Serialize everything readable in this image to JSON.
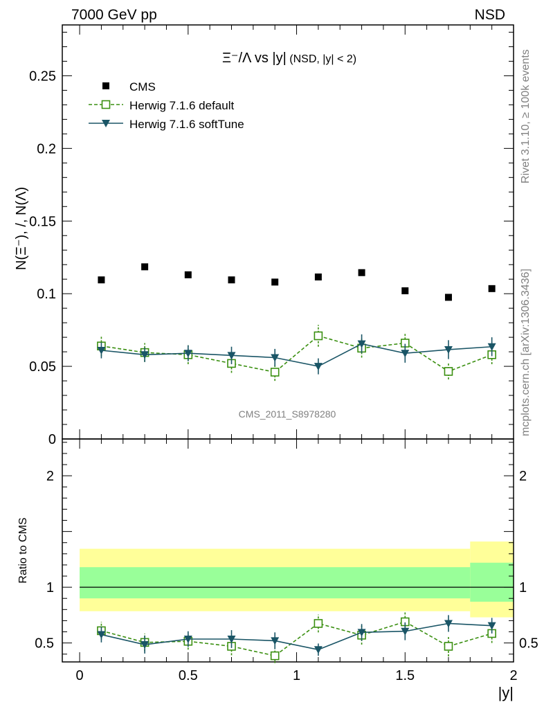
{
  "header": {
    "left": "7000 GeV pp",
    "right": "NSD"
  },
  "side_labels": {
    "rivet": "Rivet 3.1.10, ≥ 100k events",
    "mcplots": "mcplots.cern.ch [arXiv:1306.3436]"
  },
  "watermark": "CMS_2011_S8978280",
  "colors": {
    "data": "#000000",
    "default": "#3a8f10",
    "softtune": "#1a5566",
    "band_outer": "#ffff99",
    "band_inner": "#99ff99"
  },
  "chart_data": [
    {
      "type": "scatter",
      "title": "Ξ⁻/Λ vs |y|",
      "title_suffix": "(NSD, |y| < 2)",
      "ylabel": "N(Ξ⁻), /, N(Λ)",
      "xlim": [
        -0.08,
        2.0
      ],
      "ylim": [
        0,
        0.285
      ],
      "x": [
        0.1,
        0.3,
        0.5,
        0.7,
        0.9,
        1.1,
        1.3,
        1.5,
        1.7,
        1.9
      ],
      "yticks": [
        {
          "v": 0.05,
          "label": "0.05"
        },
        {
          "v": 0.1,
          "label": "0.1"
        },
        {
          "v": 0.15,
          "label": "0.15"
        },
        {
          "v": 0.2,
          "label": "0.2"
        },
        {
          "v": 0.25,
          "label": "0.25"
        },
        {
          "v": 0,
          "label": "0"
        }
      ],
      "legend_position": "top-left",
      "series": [
        {
          "name": "CMS",
          "marker": "filled-square",
          "values": [
            0.1095,
            0.1185,
            0.113,
            0.1095,
            0.108,
            0.1115,
            0.1145,
            0.102,
            0.0975,
            0.1035
          ]
        },
        {
          "name": "Herwig 7.1.6 default",
          "marker": "open-square",
          "line": "dashed",
          "values": [
            0.064,
            0.0595,
            0.058,
            0.052,
            0.046,
            0.071,
            0.0625,
            0.066,
            0.0465,
            0.058
          ],
          "errors": [
            0.007,
            0.0065,
            0.0065,
            0.0065,
            0.006,
            0.0075,
            0.0065,
            0.007,
            0.0055,
            0.0065
          ]
        },
        {
          "name": "Herwig 7.1.6 softTune",
          "marker": "filled-triangle-down",
          "line": "solid",
          "values": [
            0.061,
            0.058,
            0.059,
            0.0575,
            0.056,
            0.05,
            0.0655,
            0.059,
            0.0615,
            0.0635
          ],
          "errors": [
            0.0055,
            0.005,
            0.0055,
            0.006,
            0.006,
            0.0055,
            0.0065,
            0.0065,
            0.0065,
            0.0065
          ]
        }
      ]
    },
    {
      "type": "scatter",
      "ylabel": "Ratio to CMS",
      "xlabel": "|y|",
      "xlim": [
        -0.08,
        2.0
      ],
      "ylim": [
        0.33,
        2.33
      ],
      "x": [
        0.1,
        0.3,
        0.5,
        0.7,
        0.9,
        1.1,
        1.3,
        1.5,
        1.7,
        1.9
      ],
      "xticks": [
        {
          "v": 0,
          "label": "0"
        },
        {
          "v": 0.5,
          "label": "0.5"
        },
        {
          "v": 1,
          "label": "1"
        },
        {
          "v": 1.5,
          "label": "1.5"
        },
        {
          "v": 2,
          "label": "2"
        }
      ],
      "yticks": [
        {
          "v": 0.5,
          "label": "0.5"
        },
        {
          "v": 1,
          "label": "1"
        },
        {
          "v": 2,
          "label": "2"
        }
      ],
      "bands": [
        {
          "x0": 0.0,
          "x1": 1.8,
          "outer": [
            0.785,
            1.345
          ],
          "inner": [
            0.9,
            1.18
          ]
        },
        {
          "x0": 1.8,
          "x1": 2.0,
          "outer": [
            0.73,
            1.41
          ],
          "inner": [
            0.87,
            1.22
          ]
        }
      ],
      "reference": 1,
      "series": [
        {
          "name": "Herwig 7.1.6 default",
          "marker": "open-square",
          "line": "dashed",
          "values": [
            0.61,
            0.505,
            0.515,
            0.47,
            0.385,
            0.675,
            0.57,
            0.69,
            0.47,
            0.585
          ],
          "errors": [
            0.08,
            0.08,
            0.075,
            0.08,
            0.065,
            0.08,
            0.085,
            0.09,
            0.09,
            0.085
          ]
        },
        {
          "name": "Herwig 7.1.6 softTune",
          "marker": "filled-triangle-down",
          "line": "solid",
          "values": [
            0.575,
            0.485,
            0.535,
            0.535,
            0.52,
            0.44,
            0.595,
            0.605,
            0.675,
            0.655
          ],
          "errors": [
            0.07,
            0.08,
            0.07,
            0.08,
            0.075,
            0.055,
            0.075,
            0.08,
            0.075,
            0.07
          ]
        }
      ]
    }
  ]
}
